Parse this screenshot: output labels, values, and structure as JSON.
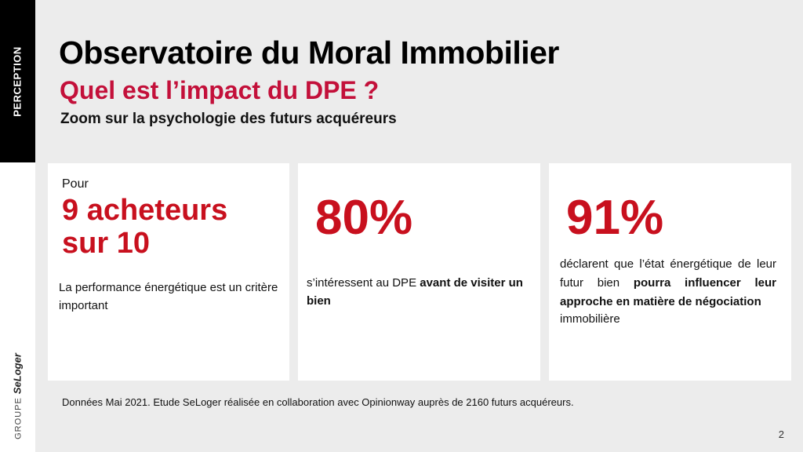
{
  "sidebar": {
    "section_label": "PERCEPTION",
    "brand_prefix": "GROUPE",
    "brand_name": "SeLoger"
  },
  "header": {
    "title": "Observatoire du Moral Immobilier",
    "subtitle": "Quel est l’impact du DPE ?",
    "tagline": "Zoom sur la psychologie des futurs acquéreurs"
  },
  "cards": [
    {
      "lead": "Pour",
      "stat": "9 acheteurs sur 10",
      "text": "La performance énergétique est un critère important"
    },
    {
      "stat": "80%",
      "text_plain": "s’intéressent au DPE ",
      "text_bold": "avant de visiter un bien"
    },
    {
      "stat": "91%",
      "text_plain": "déclarent que l’état énergétique de leur futur bien ",
      "text_bold": "pourra influencer leur approche en matière de négociation",
      "text_tail": "immobilière"
    }
  ],
  "footnote": "Données Mai 2021. Etude SeLoger réalisée en collaboration avec Opinionway  auprès de 2160 futurs acquéreurs.",
  "page_number": "2",
  "colors": {
    "accent_red": "#c8101e",
    "subtitle_crimson": "#c3103a",
    "tab_black": "#000000"
  }
}
